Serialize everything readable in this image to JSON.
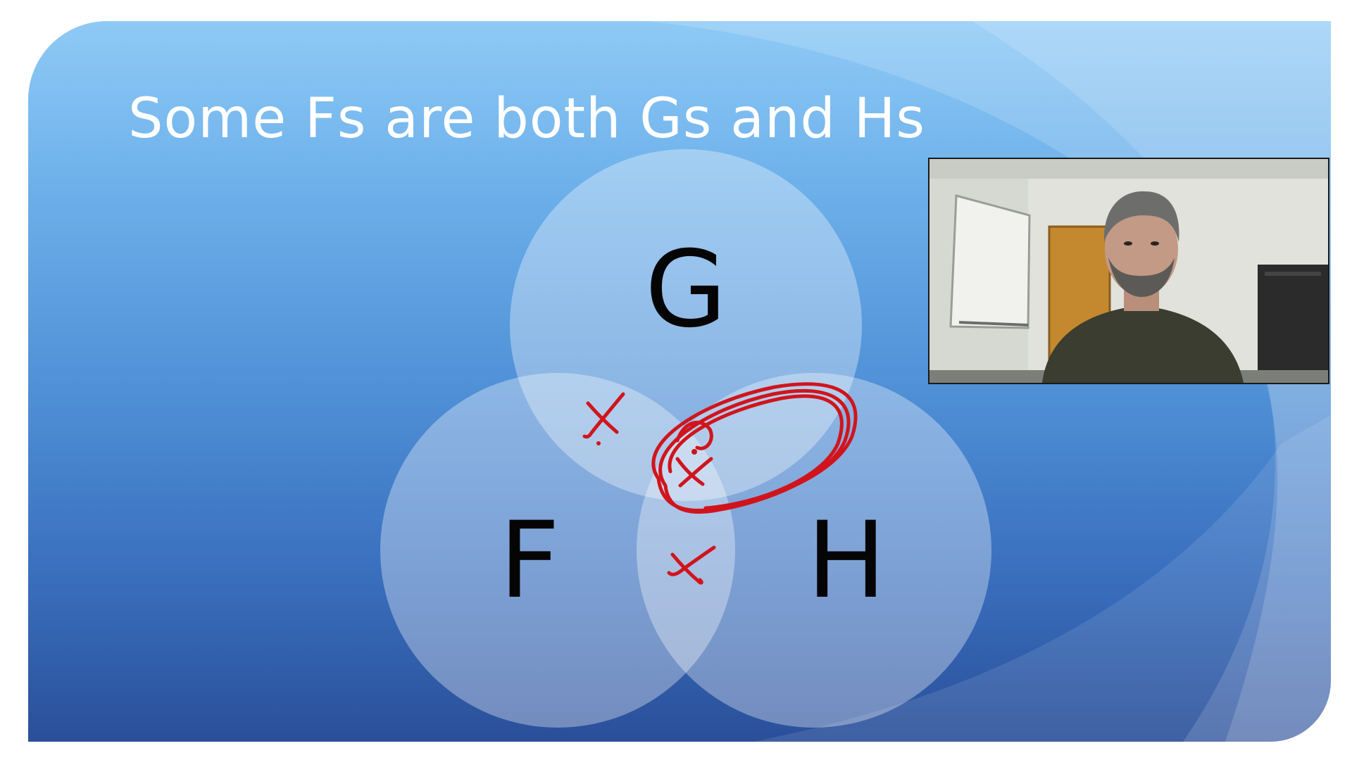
{
  "slide": {
    "title": "Some Fs are both Gs and Hs",
    "background_top": "#8fcaf6",
    "background_bottom": "#2a4f99"
  },
  "venn": {
    "sets": [
      {
        "label": "G",
        "position": "top"
      },
      {
        "label": "F",
        "position": "bottom-left"
      },
      {
        "label": "H",
        "position": "bottom-right"
      }
    ],
    "circle_fill": "rgba(255,255,255,0.34)",
    "annotations": [
      {
        "mark": "x",
        "region": "F and G only",
        "color": "#d1141c"
      },
      {
        "mark": "x",
        "region": "F and H only",
        "color": "#d1141c"
      },
      {
        "mark": "x",
        "region": "F and G and H",
        "color": "#d1141c",
        "circled": true
      }
    ]
  },
  "webcam": {
    "icon": "presenter-webcam-video"
  }
}
